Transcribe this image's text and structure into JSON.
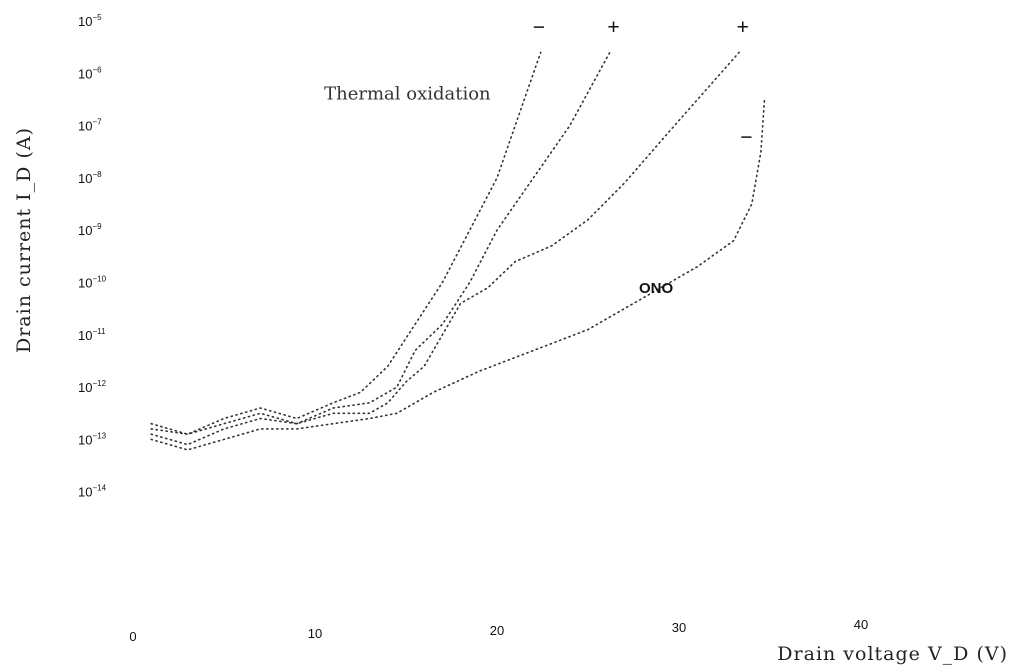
{
  "chart_data": {
    "type": "line",
    "title": "",
    "xlabel": "Drain voltage V_D (V)",
    "ylabel": "Drain current I_D (A)",
    "xlim": [
      0,
      45
    ],
    "ylim_exp": [
      -14,
      -5
    ],
    "y_scale": "log",
    "grid": false,
    "x_ticks": [
      0,
      10,
      20,
      30,
      40
    ],
    "x_tick_labels": [
      "0",
      "10",
      "20",
      "30",
      "40"
    ],
    "y_ticks": [
      {
        "base": "10",
        "exp": "-5",
        "value_exp": -5
      },
      {
        "base": "10",
        "exp": "-6",
        "value_exp": -6
      },
      {
        "base": "10",
        "exp": "-7",
        "value_exp": -7
      },
      {
        "base": "10",
        "exp": "-8",
        "value_exp": -8
      },
      {
        "base": "10",
        "exp": "-9",
        "value_exp": -9
      },
      {
        "base": "10",
        "exp": "-10",
        "value_exp": -10
      },
      {
        "base": "10",
        "exp": "-11",
        "value_exp": -11
      },
      {
        "base": "10",
        "exp": "-12",
        "value_exp": -12
      },
      {
        "base": "10",
        "exp": "-13",
        "value_exp": -13
      },
      {
        "base": "10",
        "exp": "-14",
        "value_exp": -14
      }
    ],
    "annotations": [
      {
        "text": "Thermal oxidation",
        "x": 10.5,
        "y_exp": -6.5,
        "style": "serif"
      },
      {
        "text": "ONO",
        "x": 27.8,
        "y_exp": -10.2,
        "style": "sans"
      }
    ],
    "sign_labels": [
      {
        "text": "−",
        "x": 22.3,
        "y_exp": -5.25
      },
      {
        "text": "+",
        "x": 26.4,
        "y_exp": -5.25
      },
      {
        "text": "+",
        "x": 33.5,
        "y_exp": -5.25
      },
      {
        "text": "−",
        "x": 33.7,
        "y_exp": -7.35
      }
    ],
    "series": [
      {
        "points": [
          [
            1,
            -12.7
          ],
          [
            3,
            -12.9
          ],
          [
            5,
            -12.6
          ],
          [
            7,
            -12.4
          ],
          [
            9,
            -12.6
          ],
          [
            11,
            -12.3
          ],
          [
            12.5,
            -12.1
          ],
          [
            14,
            -11.6
          ],
          [
            15.5,
            -10.8
          ],
          [
            17,
            -10.0
          ],
          [
            18.5,
            -9.0
          ],
          [
            20,
            -8.0
          ],
          [
            21,
            -7.0
          ],
          [
            22,
            -6.0
          ],
          [
            22.4,
            -5.6
          ]
        ]
      },
      {
        "points": [
          [
            1,
            -12.8
          ],
          [
            3,
            -12.9
          ],
          [
            5,
            -12.7
          ],
          [
            7,
            -12.5
          ],
          [
            9,
            -12.7
          ],
          [
            11,
            -12.4
          ],
          [
            13,
            -12.3
          ],
          [
            14.5,
            -12.0
          ],
          [
            15.5,
            -11.3
          ],
          [
            17,
            -10.8
          ],
          [
            18.5,
            -10.0
          ],
          [
            20,
            -9.0
          ],
          [
            22,
            -8.0
          ],
          [
            24,
            -7.0
          ],
          [
            26.2,
            -5.6
          ]
        ]
      },
      {
        "points": [
          [
            1,
            -12.9
          ],
          [
            3,
            -13.1
          ],
          [
            5,
            -12.8
          ],
          [
            7,
            -12.6
          ],
          [
            9,
            -12.7
          ],
          [
            11,
            -12.5
          ],
          [
            13,
            -12.5
          ],
          [
            14,
            -12.3
          ],
          [
            15,
            -11.9
          ],
          [
            16,
            -11.6
          ],
          [
            17,
            -11.0
          ],
          [
            18,
            -10.4
          ],
          [
            19.5,
            -10.1
          ],
          [
            21,
            -9.6
          ],
          [
            23,
            -9.3
          ],
          [
            25,
            -8.8
          ],
          [
            27,
            -8.1
          ],
          [
            29.5,
            -7.1
          ],
          [
            33.3,
            -5.6
          ]
        ]
      },
      {
        "points": [
          [
            1,
            -13.0
          ],
          [
            3,
            -13.2
          ],
          [
            5,
            -13.0
          ],
          [
            7,
            -12.8
          ],
          [
            9,
            -12.8
          ],
          [
            11,
            -12.7
          ],
          [
            13,
            -12.6
          ],
          [
            14.5,
            -12.5
          ],
          [
            16.5,
            -12.1
          ],
          [
            19,
            -11.7
          ],
          [
            22,
            -11.3
          ],
          [
            25,
            -10.9
          ],
          [
            28,
            -10.3
          ],
          [
            31,
            -9.7
          ],
          [
            33,
            -9.2
          ],
          [
            34,
            -8.5
          ],
          [
            34.5,
            -7.5
          ],
          [
            34.7,
            -6.5
          ]
        ]
      }
    ]
  }
}
